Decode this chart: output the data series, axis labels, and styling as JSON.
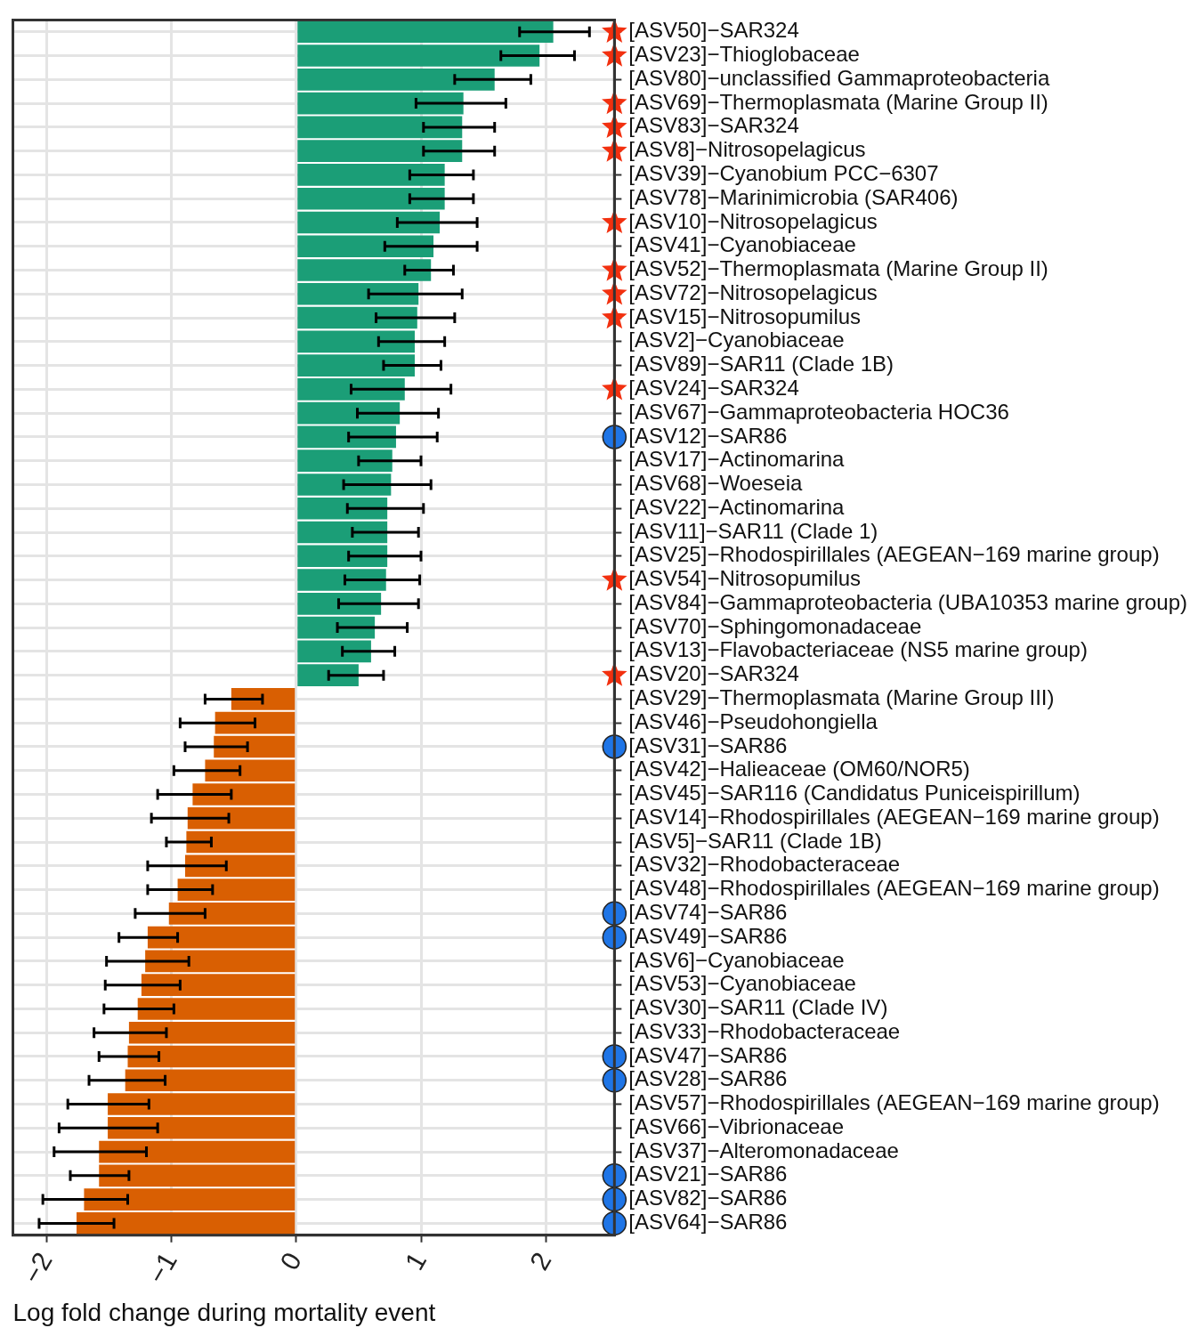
{
  "chart_data": {
    "type": "bar",
    "orientation": "horizontal",
    "xlabel": "Log fold change during mortality event",
    "categories": [
      "[ASV50]−SAR324",
      "[ASV23]−Thioglobaceae",
      "[ASV80]−unclassified Gammaproteobacteria",
      "[ASV69]−Thermoplasmata (Marine Group II)",
      "[ASV83]−SAR324",
      "[ASV8]−Nitrosopelagicus",
      "[ASV39]−Cyanobium PCC−6307",
      "[ASV78]−Marinimicrobia (SAR406)",
      "[ASV10]−Nitrosopelagicus",
      "[ASV41]−Cyanobiaceae",
      "[ASV52]−Thermoplasmata (Marine Group II)",
      "[ASV72]−Nitrosopelagicus",
      "[ASV15]−Nitrosopumilus",
      "[ASV2]−Cyanobiaceae",
      "[ASV89]−SAR11 (Clade 1B)",
      "[ASV24]−SAR324",
      "[ASV67]−Gammaproteobacteria HOC36",
      "[ASV12]−SAR86",
      "[ASV17]−Actinomarina",
      "[ASV68]−Woeseia",
      "[ASV22]−Actinomarina",
      "[ASV11]−SAR11 (Clade 1)",
      "[ASV25]−Rhodospirillales (AEGEAN−169 marine group)",
      "[ASV54]−Nitrosopumilus",
      "[ASV84]−Gammaproteobacteria (UBA10353 marine group)",
      "[ASV70]−Sphingomonadaceae",
      "[ASV13]−Flavobacteriaceae (NS5 marine group)",
      "[ASV20]−SAR324",
      "[ASV29]−Thermoplasmata (Marine Group III)",
      "[ASV46]−Pseudohongiella",
      "[ASV31]−SAR86",
      "[ASV42]−Halieaceae (OM60/NOR5)",
      "[ASV45]−SAR116 (Candidatus Puniceispirillum)",
      "[ASV14]−Rhodospirillales (AEGEAN−169 marine group)",
      "[ASV5]−SAR11 (Clade 1B)",
      "[ASV32]−Rhodobacteraceae",
      "[ASV48]−Rhodospirillales (AEGEAN−169 marine group)",
      "[ASV74]−SAR86",
      "[ASV49]−SAR86",
      "[ASV6]−Cyanobiaceae",
      "[ASV53]−Cyanobiaceae",
      "[ASV30]−SAR11 (Clade IV)",
      "[ASV33]−Rhodobacteraceae",
      "[ASV47]−SAR86",
      "[ASV28]−SAR86",
      "[ASV57]−Rhodospirillales (AEGEAN−169 marine group)",
      "[ASV66]−Vibrionaceae",
      "[ASV37]−Alteromonadaceae",
      "[ASV21]−SAR86",
      "[ASV82]−SAR86",
      "[ASV64]−SAR86"
    ],
    "series": [
      {
        "type": "bar",
        "colors": [
          "#1b9e77",
          "#1b9e77",
          "#1b9e77",
          "#1b9e77",
          "#1b9e77",
          "#1b9e77",
          "#1b9e77",
          "#1b9e77",
          "#1b9e77",
          "#1b9e77",
          "#1b9e77",
          "#1b9e77",
          "#1b9e77",
          "#1b9e77",
          "#1b9e77",
          "#1b9e77",
          "#1b9e77",
          "#1b9e77",
          "#1b9e77",
          "#1b9e77",
          "#1b9e77",
          "#1b9e77",
          "#1b9e77",
          "#1b9e77",
          "#1b9e77",
          "#1b9e77",
          "#1b9e77",
          "#1b9e77",
          "#d95f02",
          "#d95f02",
          "#d95f02",
          "#d95f02",
          "#d95f02",
          "#d95f02",
          "#d95f02",
          "#d95f02",
          "#d95f02",
          "#d95f02",
          "#d95f02",
          "#d95f02",
          "#d95f02",
          "#d95f02",
          "#d95f02",
          "#d95f02",
          "#d95f02",
          "#d95f02",
          "#d95f02",
          "#d95f02",
          "#d95f02",
          "#d95f02",
          "#d95f02"
        ],
        "values": [
          2.06,
          1.95,
          1.59,
          1.34,
          1.33,
          1.33,
          1.19,
          1.19,
          1.15,
          1.1,
          1.08,
          0.98,
          0.97,
          0.95,
          0.95,
          0.87,
          0.83,
          0.8,
          0.77,
          0.76,
          0.73,
          0.73,
          0.73,
          0.72,
          0.68,
          0.63,
          0.6,
          0.5,
          -0.52,
          -0.65,
          -0.66,
          -0.73,
          -0.83,
          -0.87,
          -0.88,
          -0.89,
          -0.95,
          -1.02,
          -1.19,
          -1.21,
          -1.24,
          -1.27,
          -1.34,
          -1.35,
          -1.37,
          -1.51,
          -1.51,
          -1.58,
          -1.58,
          -1.7,
          -1.76
        ],
        "errors": [
          [
            1.79,
            2.35
          ],
          [
            1.64,
            2.23
          ],
          [
            1.27,
            1.88
          ],
          [
            0.96,
            1.68
          ],
          [
            1.02,
            1.59
          ],
          [
            1.02,
            1.59
          ],
          [
            0.91,
            1.42
          ],
          [
            0.91,
            1.42
          ],
          [
            0.81,
            1.45
          ],
          [
            0.71,
            1.45
          ],
          [
            0.87,
            1.26
          ],
          [
            0.58,
            1.33
          ],
          [
            0.64,
            1.27
          ],
          [
            0.66,
            1.19
          ],
          [
            0.7,
            1.16
          ],
          [
            0.44,
            1.24
          ],
          [
            0.49,
            1.14
          ],
          [
            0.42,
            1.13
          ],
          [
            0.5,
            1.0
          ],
          [
            0.38,
            1.08
          ],
          [
            0.41,
            1.02
          ],
          [
            0.45,
            0.98
          ],
          [
            0.42,
            1.0
          ],
          [
            0.39,
            0.99
          ],
          [
            0.34,
            0.98
          ],
          [
            0.33,
            0.89
          ],
          [
            0.37,
            0.79
          ],
          [
            0.26,
            0.7
          ],
          [
            -0.73,
            -0.27
          ],
          [
            -0.93,
            -0.33
          ],
          [
            -0.89,
            -0.39
          ],
          [
            -0.98,
            -0.45
          ],
          [
            -1.11,
            -0.52
          ],
          [
            -1.16,
            -0.54
          ],
          [
            -1.04,
            -0.68
          ],
          [
            -1.19,
            -0.56
          ],
          [
            -1.19,
            -0.67
          ],
          [
            -1.29,
            -0.73
          ],
          [
            -1.42,
            -0.95
          ],
          [
            -1.52,
            -0.86
          ],
          [
            -1.53,
            -0.93
          ],
          [
            -1.54,
            -0.98
          ],
          [
            -1.62,
            -1.04
          ],
          [
            -1.58,
            -1.1
          ],
          [
            -1.66,
            -1.05
          ],
          [
            -1.83,
            -1.18
          ],
          [
            -1.9,
            -1.11
          ],
          [
            -1.94,
            -1.2
          ],
          [
            -1.81,
            -1.34
          ],
          [
            -2.03,
            -1.35
          ],
          [
            -2.06,
            -1.46
          ]
        ]
      },
      {
        "type": "scatter",
        "marker": "star",
        "color": "#f2300f",
        "values": [
          2.55,
          2.55,
          null,
          2.55,
          2.55,
          2.55,
          null,
          null,
          2.55,
          null,
          2.55,
          2.55,
          2.55,
          null,
          null,
          2.55,
          null,
          null,
          null,
          null,
          null,
          null,
          null,
          2.55,
          null,
          null,
          null,
          2.55,
          null,
          null,
          null,
          null,
          null,
          null,
          null,
          null,
          null,
          null,
          null,
          null,
          null,
          null,
          null,
          null,
          null,
          null,
          null,
          null,
          null,
          null,
          null
        ]
      },
      {
        "type": "scatter",
        "marker": "circle",
        "color": "#1f75e6",
        "values": [
          null,
          null,
          null,
          null,
          null,
          null,
          null,
          null,
          null,
          null,
          null,
          null,
          null,
          null,
          null,
          null,
          null,
          2.55,
          null,
          null,
          null,
          null,
          null,
          null,
          null,
          null,
          null,
          null,
          null,
          null,
          2.55,
          null,
          null,
          null,
          null,
          null,
          null,
          2.55,
          2.55,
          null,
          null,
          null,
          null,
          2.55,
          2.55,
          null,
          null,
          null,
          2.55,
          2.55,
          2.55
        ]
      }
    ],
    "xlim": [
      -2.27,
      2.55
    ],
    "xticks": [
      {
        "value": -2,
        "label": "−2"
      },
      {
        "value": -1,
        "label": "−1"
      },
      0,
      1,
      2
    ],
    "grid": true
  }
}
